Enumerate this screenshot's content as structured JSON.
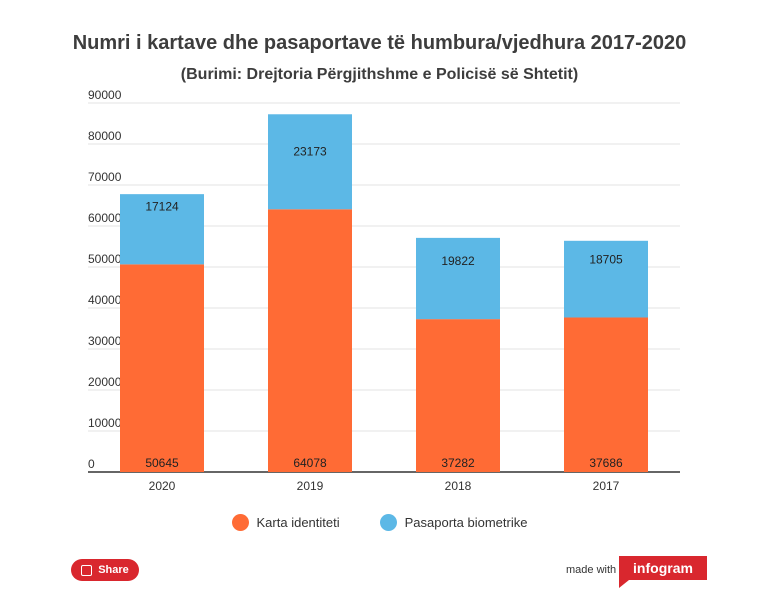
{
  "chart_data": {
    "type": "bar",
    "stacked": true,
    "title": "Numri i kartave dhe pasaportave të humbura/vjedhura 2017-2020",
    "subtitle": "(Burimi: Drejtoria Përgjithshme e Policisë së Shtetit)",
    "categories": [
      "2020",
      "2019",
      "2018",
      "2017"
    ],
    "series": [
      {
        "name": "Karta identiteti",
        "color": "#ff6b35",
        "values": [
          50645,
          64078,
          37282,
          37686
        ]
      },
      {
        "name": "Pasaporta biometrike",
        "color": "#5cb8e6",
        "values": [
          17124,
          23173,
          19822,
          18705
        ]
      }
    ],
    "ylim": [
      0,
      90000
    ],
    "yticks": [
      "0",
      "10000",
      "20000",
      "30000",
      "40000",
      "50000",
      "60000",
      "70000",
      "80000",
      "90000"
    ],
    "grid": true,
    "legend_position": "bottom"
  },
  "footer": {
    "share_label": "Share",
    "made_with": "made with",
    "brand": "infogram"
  }
}
